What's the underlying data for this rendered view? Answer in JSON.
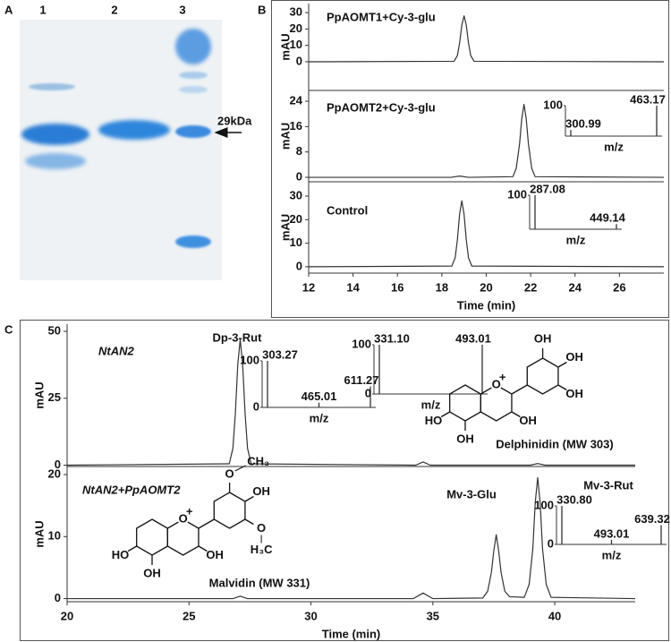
{
  "panel_labels": [
    "A",
    "B",
    "C"
  ],
  "gel": {
    "lanes": [
      "1",
      "2",
      "3"
    ],
    "marker": "29kDa"
  },
  "structures": [
    {
      "name": "Delphinidin (MW 303)",
      "atoms": [
        "OH",
        "OH",
        "OH",
        "HO",
        "O",
        "+",
        "OH",
        "OH"
      ]
    },
    {
      "name": "Malvidin (MW 331)",
      "atoms": [
        "O",
        "CH₃",
        "OH",
        "O",
        "H₃C",
        "HO",
        "O",
        "+",
        "OH",
        "OH"
      ]
    }
  ],
  "chart_data": [
    {
      "type": "line",
      "title": "PpAOMT1+Cy-3-glu",
      "ylabel": "mAU",
      "color": "#333333",
      "xlim": [
        12,
        28
      ],
      "ylim": [
        -17.5,
        35.5
      ],
      "yticks": [
        0,
        10,
        20,
        30
      ],
      "x": [
        12,
        18.55,
        18.7,
        18.8,
        18.9,
        19.0,
        19.1,
        19.2,
        19.3,
        19.45,
        28
      ],
      "values": [
        0,
        0.3,
        3.8,
        11.5,
        22.4,
        28,
        22.4,
        11.5,
        3.8,
        0.3,
        0
      ]
    },
    {
      "type": "line",
      "title": "PpAOMT2+Cy-3-glu",
      "ylabel": "mAU",
      "color": "#333333",
      "xlim": [
        12,
        28
      ],
      "ylim": [
        -1.4,
        27.4
      ],
      "yticks": [
        0,
        8,
        16,
        24
      ],
      "x": [
        12,
        18.4,
        18.8,
        19.2,
        21.2,
        21.35,
        21.5,
        21.6,
        21.7,
        21.8,
        21.9,
        22.05,
        22.2,
        28
      ],
      "values": [
        0,
        0,
        0.4,
        0,
        0.2,
        2.8,
        10.5,
        18.5,
        23,
        18.5,
        10.5,
        2.8,
        0.2,
        0
      ]
    },
    {
      "type": "spectrum",
      "xlabel": "m/z",
      "ylim": [
        0,
        100
      ],
      "yticks": [
        100
      ],
      "categories": [
        "300.99",
        "463.17"
      ],
      "values": [
        20,
        100
      ]
    },
    {
      "type": "line",
      "title": "Control",
      "ylabel": "mAU",
      "xlabel": "Time (min)",
      "color": "#333333",
      "xlim": [
        12,
        28
      ],
      "ylim": [
        -2.7,
        36.1
      ],
      "yticks": [
        0,
        10,
        20,
        30
      ],
      "xticks": [
        12,
        14,
        16,
        18,
        20,
        22,
        24,
        26
      ],
      "x": [
        12,
        18.45,
        18.6,
        18.7,
        18.8,
        18.9,
        19.0,
        19.1,
        19.2,
        19.35,
        28
      ],
      "values": [
        0,
        0.3,
        3.8,
        11.5,
        22.4,
        28,
        22.4,
        11.5,
        3.8,
        0.3,
        0
      ]
    },
    {
      "type": "spectrum",
      "xlabel": "m/z",
      "ylim": [
        0,
        100
      ],
      "yticks": [
        100
      ],
      "categories": [
        "287.08",
        "449.14"
      ],
      "values": [
        100,
        15
      ]
    },
    {
      "type": "line",
      "title": "NtAN2",
      "ylabel": "mAU",
      "annotations": [
        "Dp-3-Rut"
      ],
      "color": "#333333",
      "xlim": [
        20,
        43.3
      ],
      "ylim": [
        -0.5,
        52.7
      ],
      "yticks": [
        0,
        25,
        50
      ],
      "x": [
        20,
        26.65,
        26.8,
        26.9,
        27.0,
        27.1,
        27.2,
        27.3,
        27.4,
        27.55,
        34.3,
        34.6,
        34.9,
        39.0,
        39.3,
        39.6,
        43.3
      ],
      "values": [
        0,
        0.5,
        6.3,
        19.3,
        37.6,
        47,
        37.6,
        19.3,
        6.3,
        0.5,
        0,
        1.2,
        0,
        0,
        0.6,
        0,
        0
      ]
    },
    {
      "type": "spectrum",
      "xlabel": "m/z",
      "ylim": [
        0,
        100
      ],
      "yticks": [
        0,
        100
      ],
      "categories": [
        "303.27",
        "465.01",
        "611.27"
      ],
      "values": [
        100,
        10,
        45
      ]
    },
    {
      "type": "line",
      "title": "NtAN2+PpAOMT2",
      "ylabel": "mAU",
      "xlabel": "Time (min)",
      "annotations": [
        "Mv-3-Glu",
        "Mv-3-Rut"
      ],
      "color": "#333333",
      "xlim": [
        20,
        43.3
      ],
      "ylim": [
        -0.5,
        21.3
      ],
      "yticks": [
        0,
        10,
        20
      ],
      "xticks": [
        20,
        25,
        30,
        35,
        40
      ],
      "x": [
        20,
        26.8,
        27.1,
        27.4,
        34.2,
        34.6,
        35.0,
        37.05,
        37.25,
        37.4,
        37.5,
        37.6,
        37.7,
        37.8,
        37.95,
        38.15,
        38.75,
        38.95,
        39.1,
        39.2,
        39.3,
        39.4,
        39.5,
        39.65,
        39.85,
        43.3
      ],
      "values": [
        0,
        0,
        0.4,
        0,
        0,
        0.9,
        0,
        0.1,
        1.2,
        4.2,
        7.7,
        10.3,
        7.7,
        4.2,
        1.2,
        0.3,
        0.2,
        2.3,
        8.0,
        15.5,
        19.5,
        15.5,
        8.0,
        2.3,
        0.2,
        0
      ]
    },
    {
      "type": "spectrum",
      "xlabel": "m/z",
      "ylim": [
        0,
        100
      ],
      "yticks": [
        0,
        100
      ],
      "categories": [
        "331.10",
        "493.01"
      ],
      "values": [
        100,
        100
      ]
    },
    {
      "type": "spectrum",
      "xlabel": "m/z",
      "ylim": [
        0,
        100
      ],
      "yticks": [
        0,
        100
      ],
      "categories": [
        "330.80",
        "493.01",
        "639.32"
      ],
      "values": [
        100,
        12,
        50
      ]
    }
  ]
}
